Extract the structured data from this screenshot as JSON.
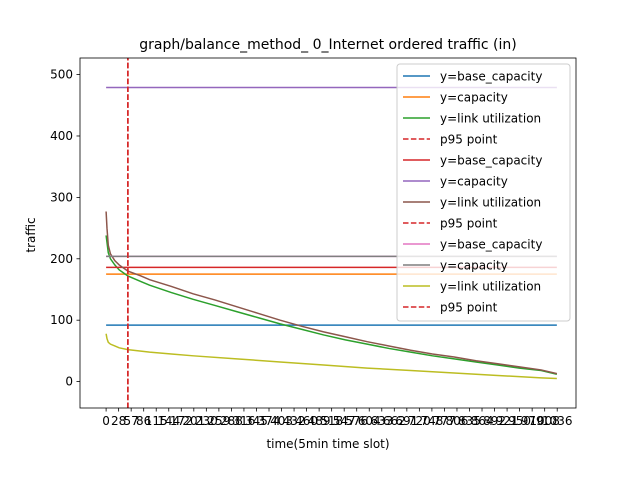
{
  "chart_data": {
    "type": "line",
    "title": "graph/balance_method_ 0_Internet ordered traffic (in)",
    "xlabel": "time(5min time slot)",
    "ylabel": "traffic",
    "xlim": [
      -60,
      1080
    ],
    "ylim": [
      -43,
      527
    ],
    "grid": false,
    "legend_position": "top-right",
    "p95_x": 50,
    "y_ticks": [
      0,
      100,
      200,
      300,
      400,
      500
    ],
    "x_tick_labels": [
      "0",
      "28",
      "57",
      "86",
      "115",
      "144",
      "172",
      "201",
      "230",
      "259",
      "288",
      "316",
      "345",
      "374",
      "403",
      "432",
      "460",
      "489",
      "518",
      "547",
      "576",
      "604",
      "633",
      "662",
      "691",
      "720",
      "748",
      "777",
      "806",
      "835",
      "864",
      "892",
      "921",
      "950",
      "979",
      "1008",
      "1036"
    ],
    "series": [
      {
        "name": "y=base_capacity",
        "color": "#1f77b4",
        "style": "solid",
        "x": [
          0,
          1036
        ],
        "y": [
          92,
          92
        ]
      },
      {
        "name": "y=capacity",
        "color": "#ff7f0e",
        "style": "solid",
        "x": [
          0,
          1036
        ],
        "y": [
          175,
          175
        ]
      },
      {
        "name": "y=link utilization",
        "color": "#2ca02c",
        "style": "solid",
        "x": [
          0,
          5,
          10,
          20,
          30,
          50,
          80,
          100,
          150,
          200,
          250,
          300,
          350,
          400,
          450,
          500,
          550,
          600,
          650,
          700,
          750,
          800,
          850,
          900,
          950,
          1000,
          1036
        ],
        "y": [
          238,
          210,
          200,
          190,
          182,
          172,
          163,
          157,
          145,
          134,
          124,
          114,
          104,
          94,
          85,
          76,
          68,
          61,
          54,
          48,
          42,
          37,
          32,
          27,
          22,
          18,
          12
        ]
      },
      {
        "name": "p95 point",
        "color": "#d62728",
        "style": "dashed",
        "x": [
          50,
          50
        ],
        "y": [
          -43,
          527
        ]
      },
      {
        "name": "y=base_capacity",
        "color": "#d62728",
        "style": "solid",
        "x": [
          0,
          1036
        ],
        "y": [
          186,
          186
        ]
      },
      {
        "name": "y=capacity",
        "color": "#9467bd",
        "style": "solid",
        "x": [
          0,
          1036
        ],
        "y": [
          479,
          479
        ]
      },
      {
        "name": "y=link utilization",
        "color": "#8c564b",
        "style": "solid",
        "x": [
          0,
          2,
          5,
          10,
          20,
          30,
          50,
          80,
          100,
          150,
          200,
          250,
          300,
          350,
          400,
          450,
          500,
          550,
          600,
          650,
          700,
          750,
          800,
          850,
          900,
          950,
          1000,
          1036
        ],
        "y": [
          277,
          250,
          222,
          208,
          197,
          190,
          180,
          172,
          166,
          155,
          143,
          133,
          122,
          111,
          100,
          90,
          81,
          73,
          65,
          58,
          51,
          45,
          40,
          34,
          29,
          24,
          19,
          13
        ]
      },
      {
        "name": "p95 point",
        "color": "#d62728",
        "style": "dashed",
        "x": [
          50,
          50
        ],
        "y": [
          -43,
          527
        ]
      },
      {
        "name": "y=base_capacity",
        "color": "#e377c2",
        "style": "solid",
        "x": [
          0,
          1036
        ],
        "y": [
          204,
          204
        ]
      },
      {
        "name": "y=capacity",
        "color": "#7f7f7f",
        "style": "solid",
        "x": [
          0,
          1036
        ],
        "y": [
          204,
          204
        ]
      },
      {
        "name": "y=link utilization",
        "color": "#bcbd22",
        "style": "solid",
        "x": [
          0,
          2,
          5,
          10,
          20,
          30,
          50,
          100,
          150,
          200,
          300,
          400,
          500,
          600,
          700,
          800,
          900,
          1000,
          1036
        ],
        "y": [
          78,
          70,
          64,
          61,
          58,
          55,
          52,
          48,
          45,
          42,
          37,
          32,
          27,
          22,
          18,
          14,
          10,
          6,
          5
        ]
      },
      {
        "name": "p95 point",
        "color": "#d62728",
        "style": "dashed",
        "x": [
          50,
          50
        ],
        "y": [
          -43,
          527
        ]
      }
    ]
  }
}
